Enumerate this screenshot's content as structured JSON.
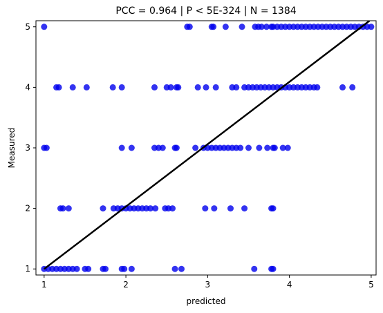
{
  "chart_data": {
    "type": "scatter",
    "title": "PCC =  0.964 | P <  5E-324 | N = 1384",
    "xlabel": "predicted",
    "ylabel": "Measured",
    "xlim": [
      0.9,
      5.06
    ],
    "ylim": [
      0.9,
      5.1
    ],
    "xticks": [
      "1",
      "2",
      "3",
      "4",
      "5"
    ],
    "yticks": [
      "1",
      "2",
      "3",
      "4",
      "5"
    ],
    "grid": false,
    "legend": "none",
    "point_color": "#0000ee",
    "point_alpha": 0.8,
    "fit_line_color": "#000000",
    "fit_line": {
      "x": [
        1.0,
        4.98
      ],
      "y": [
        1.0,
        5.1
      ]
    },
    "points": [
      {
        "x": 1.0,
        "y": 5.0
      },
      {
        "x": 2.75,
        "y": 5
      },
      {
        "x": 2.78,
        "y": 5
      },
      {
        "x": 3.05,
        "y": 5
      },
      {
        "x": 3.07,
        "y": 5
      },
      {
        "x": 3.22,
        "y": 5
      },
      {
        "x": 3.42,
        "y": 5
      },
      {
        "x": 3.58,
        "y": 5
      },
      {
        "x": 3.62,
        "y": 5
      },
      {
        "x": 3.66,
        "y": 5
      },
      {
        "x": 3.72,
        "y": 5
      },
      {
        "x": 3.78,
        "y": 5
      },
      {
        "x": 3.8,
        "y": 5
      },
      {
        "x": 3.85,
        "y": 5
      },
      {
        "x": 3.9,
        "y": 5
      },
      {
        "x": 3.95,
        "y": 5
      },
      {
        "x": 4.0,
        "y": 5
      },
      {
        "x": 4.05,
        "y": 5
      },
      {
        "x": 4.1,
        "y": 5
      },
      {
        "x": 4.15,
        "y": 5
      },
      {
        "x": 4.2,
        "y": 5
      },
      {
        "x": 4.25,
        "y": 5
      },
      {
        "x": 4.3,
        "y": 5
      },
      {
        "x": 4.35,
        "y": 5
      },
      {
        "x": 4.4,
        "y": 5
      },
      {
        "x": 4.45,
        "y": 5
      },
      {
        "x": 4.5,
        "y": 5
      },
      {
        "x": 4.55,
        "y": 5
      },
      {
        "x": 4.6,
        "y": 5
      },
      {
        "x": 4.65,
        "y": 5
      },
      {
        "x": 4.7,
        "y": 5
      },
      {
        "x": 4.75,
        "y": 5
      },
      {
        "x": 4.8,
        "y": 5
      },
      {
        "x": 4.85,
        "y": 5
      },
      {
        "x": 4.9,
        "y": 5
      },
      {
        "x": 4.95,
        "y": 5
      },
      {
        "x": 5.0,
        "y": 5
      },
      {
        "x": 1.15,
        "y": 4
      },
      {
        "x": 1.18,
        "y": 4
      },
      {
        "x": 1.35,
        "y": 4
      },
      {
        "x": 1.52,
        "y": 4
      },
      {
        "x": 1.84,
        "y": 4
      },
      {
        "x": 1.95,
        "y": 4
      },
      {
        "x": 2.35,
        "y": 4
      },
      {
        "x": 2.5,
        "y": 4
      },
      {
        "x": 2.55,
        "y": 4
      },
      {
        "x": 2.62,
        "y": 4
      },
      {
        "x": 2.64,
        "y": 4
      },
      {
        "x": 2.88,
        "y": 4
      },
      {
        "x": 2.98,
        "y": 4
      },
      {
        "x": 3.1,
        "y": 4
      },
      {
        "x": 3.3,
        "y": 4
      },
      {
        "x": 3.35,
        "y": 4
      },
      {
        "x": 3.45,
        "y": 4
      },
      {
        "x": 3.5,
        "y": 4
      },
      {
        "x": 3.55,
        "y": 4
      },
      {
        "x": 3.6,
        "y": 4
      },
      {
        "x": 3.65,
        "y": 4
      },
      {
        "x": 3.7,
        "y": 4
      },
      {
        "x": 3.75,
        "y": 4
      },
      {
        "x": 3.8,
        "y": 4
      },
      {
        "x": 3.85,
        "y": 4
      },
      {
        "x": 3.9,
        "y": 4
      },
      {
        "x": 3.95,
        "y": 4
      },
      {
        "x": 4.0,
        "y": 4
      },
      {
        "x": 4.05,
        "y": 4
      },
      {
        "x": 4.1,
        "y": 4
      },
      {
        "x": 4.15,
        "y": 4
      },
      {
        "x": 4.2,
        "y": 4
      },
      {
        "x": 4.25,
        "y": 4
      },
      {
        "x": 4.3,
        "y": 4
      },
      {
        "x": 4.34,
        "y": 4
      },
      {
        "x": 4.65,
        "y": 4
      },
      {
        "x": 4.77,
        "y": 4
      },
      {
        "x": 1.0,
        "y": 3
      },
      {
        "x": 1.03,
        "y": 3
      },
      {
        "x": 1.95,
        "y": 3
      },
      {
        "x": 2.07,
        "y": 3
      },
      {
        "x": 2.35,
        "y": 3
      },
      {
        "x": 2.4,
        "y": 3
      },
      {
        "x": 2.45,
        "y": 3
      },
      {
        "x": 2.6,
        "y": 3
      },
      {
        "x": 2.62,
        "y": 3
      },
      {
        "x": 2.85,
        "y": 3
      },
      {
        "x": 2.95,
        "y": 3
      },
      {
        "x": 3.0,
        "y": 3
      },
      {
        "x": 3.05,
        "y": 3
      },
      {
        "x": 3.1,
        "y": 3
      },
      {
        "x": 3.15,
        "y": 3
      },
      {
        "x": 3.2,
        "y": 3
      },
      {
        "x": 3.25,
        "y": 3
      },
      {
        "x": 3.3,
        "y": 3
      },
      {
        "x": 3.35,
        "y": 3
      },
      {
        "x": 3.4,
        "y": 3
      },
      {
        "x": 3.5,
        "y": 3
      },
      {
        "x": 3.63,
        "y": 3
      },
      {
        "x": 3.73,
        "y": 3
      },
      {
        "x": 3.8,
        "y": 3
      },
      {
        "x": 3.82,
        "y": 3
      },
      {
        "x": 3.92,
        "y": 3
      },
      {
        "x": 3.98,
        "y": 3
      },
      {
        "x": 1.2,
        "y": 2
      },
      {
        "x": 1.23,
        "y": 2
      },
      {
        "x": 1.3,
        "y": 2
      },
      {
        "x": 1.72,
        "y": 2
      },
      {
        "x": 1.85,
        "y": 2
      },
      {
        "x": 1.9,
        "y": 2
      },
      {
        "x": 1.95,
        "y": 2
      },
      {
        "x": 2.0,
        "y": 2
      },
      {
        "x": 2.05,
        "y": 2
      },
      {
        "x": 2.1,
        "y": 2
      },
      {
        "x": 2.15,
        "y": 2
      },
      {
        "x": 2.2,
        "y": 2
      },
      {
        "x": 2.25,
        "y": 2
      },
      {
        "x": 2.3,
        "y": 2
      },
      {
        "x": 2.36,
        "y": 2
      },
      {
        "x": 2.48,
        "y": 2
      },
      {
        "x": 2.52,
        "y": 2
      },
      {
        "x": 2.57,
        "y": 2
      },
      {
        "x": 2.97,
        "y": 2
      },
      {
        "x": 3.08,
        "y": 2
      },
      {
        "x": 3.28,
        "y": 2
      },
      {
        "x": 3.45,
        "y": 2
      },
      {
        "x": 3.78,
        "y": 2
      },
      {
        "x": 3.8,
        "y": 2
      },
      {
        "x": 1.0,
        "y": 1
      },
      {
        "x": 1.05,
        "y": 1
      },
      {
        "x": 1.1,
        "y": 1
      },
      {
        "x": 1.15,
        "y": 1
      },
      {
        "x": 1.2,
        "y": 1
      },
      {
        "x": 1.25,
        "y": 1
      },
      {
        "x": 1.3,
        "y": 1
      },
      {
        "x": 1.35,
        "y": 1
      },
      {
        "x": 1.4,
        "y": 1
      },
      {
        "x": 1.5,
        "y": 1
      },
      {
        "x": 1.54,
        "y": 1
      },
      {
        "x": 1.72,
        "y": 1
      },
      {
        "x": 1.75,
        "y": 1
      },
      {
        "x": 1.95,
        "y": 1
      },
      {
        "x": 1.98,
        "y": 1
      },
      {
        "x": 2.07,
        "y": 1
      },
      {
        "x": 2.6,
        "y": 1
      },
      {
        "x": 2.68,
        "y": 1
      },
      {
        "x": 3.57,
        "y": 1
      },
      {
        "x": 3.78,
        "y": 1
      },
      {
        "x": 3.8,
        "y": 1
      }
    ]
  }
}
